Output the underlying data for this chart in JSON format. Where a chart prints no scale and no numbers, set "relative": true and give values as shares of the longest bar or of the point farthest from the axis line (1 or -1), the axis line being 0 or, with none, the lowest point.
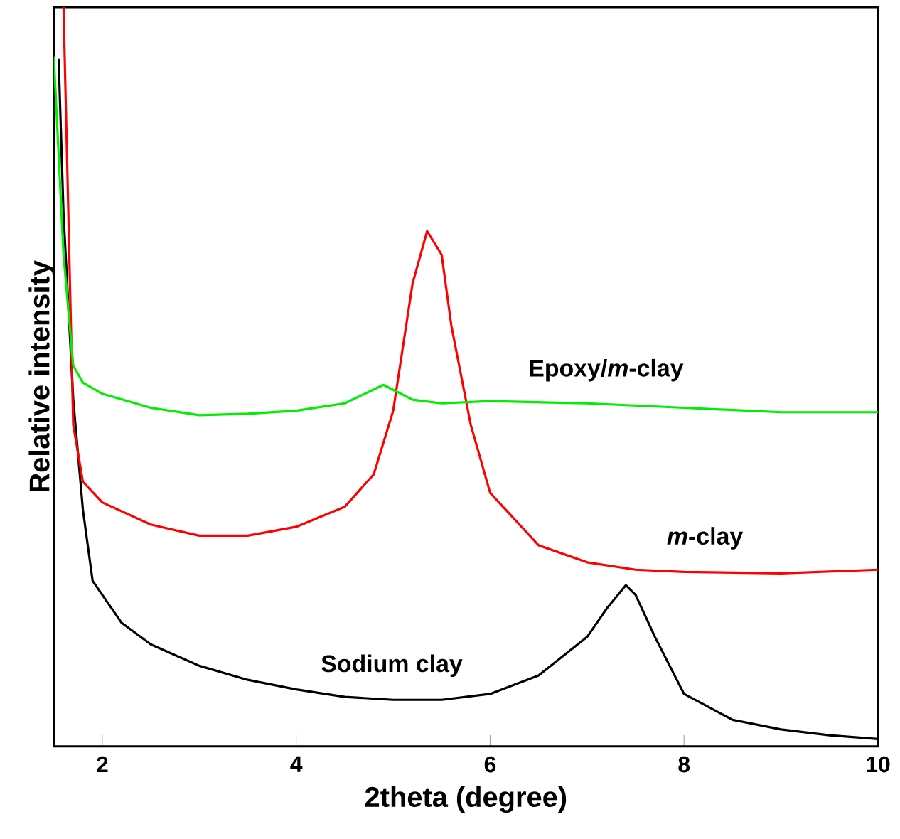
{
  "chart_data": {
    "type": "line",
    "xlabel": "2theta (degree)",
    "ylabel": "Relative intensity",
    "relative": true,
    "xlim": [
      1.5,
      10
    ],
    "xticks": [
      2,
      4,
      6,
      8,
      10
    ],
    "tick_labels": "x",
    "legend": false,
    "grid": false,
    "marker": "none",
    "line_style": "solid",
    "series": [
      {
        "name": "Sodium clay",
        "color": "#000000",
        "x": [
          1.55,
          1.6,
          1.7,
          1.8,
          1.9,
          2.0,
          2.2,
          2.5,
          3.0,
          3.5,
          4.0,
          4.5,
          5.0,
          5.5,
          6.0,
          6.5,
          7.0,
          7.2,
          7.4,
          7.5,
          7.7,
          8.0,
          8.5,
          9.0,
          9.5,
          10
        ],
        "values": [
          0.93,
          0.72,
          0.47,
          0.32,
          0.224,
          0.205,
          0.167,
          0.138,
          0.109,
          0.09,
          0.077,
          0.067,
          0.063,
          0.063,
          0.071,
          0.096,
          0.148,
          0.186,
          0.218,
          0.205,
          0.148,
          0.071,
          0.036,
          0.023,
          0.015,
          0.01
        ]
      },
      {
        "name": "*m*-clay",
        "color": "#ff0000",
        "x": [
          1.6,
          1.65,
          1.7,
          1.8,
          2.0,
          2.5,
          3.0,
          3.5,
          4.0,
          4.5,
          4.8,
          5.0,
          5.2,
          5.35,
          5.5,
          5.6,
          5.8,
          6.0,
          6.5,
          7.0,
          7.5,
          8.0,
          9.0,
          10
        ],
        "values": [
          1.0,
          0.72,
          0.435,
          0.358,
          0.33,
          0.3,
          0.285,
          0.285,
          0.297,
          0.324,
          0.368,
          0.454,
          0.626,
          0.697,
          0.665,
          0.569,
          0.435,
          0.343,
          0.272,
          0.249,
          0.239,
          0.236,
          0.234,
          0.239
        ]
      },
      {
        "name": "Epoxy/*m*-clay",
        "color": "#00ee00",
        "x": [
          1.5,
          1.6,
          1.7,
          1.8,
          2.0,
          2.5,
          3.0,
          3.5,
          4.0,
          4.5,
          4.9,
          5.2,
          5.5,
          6.0,
          7.0,
          8.0,
          9.0,
          10
        ],
        "values": [
          0.933,
          0.665,
          0.515,
          0.492,
          0.477,
          0.458,
          0.448,
          0.45,
          0.454,
          0.464,
          0.489,
          0.469,
          0.464,
          0.467,
          0.464,
          0.458,
          0.452,
          0.452
        ]
      }
    ]
  }
}
